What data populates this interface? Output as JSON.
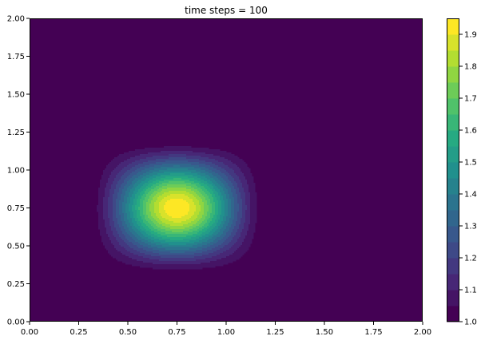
{
  "chart_data": {
    "type": "heatmap",
    "subtype": "filled-contour",
    "title": "time steps = 100",
    "xlabel": "",
    "ylabel": "",
    "xlim": [
      0,
      2
    ],
    "ylim": [
      0,
      2
    ],
    "x_ticks": [
      "0.00",
      "0.25",
      "0.50",
      "0.75",
      "1.00",
      "1.25",
      "1.50",
      "1.75",
      "2.00"
    ],
    "y_ticks": [
      "0.00",
      "0.25",
      "0.50",
      "0.75",
      "1.00",
      "1.25",
      "1.50",
      "1.75",
      "2.00"
    ],
    "field": {
      "background_value": 1.0,
      "peak_value": 1.95,
      "peak_x": 0.75,
      "peak_y": 0.75,
      "support_x": [
        0.28,
        1.22
      ],
      "support_y": [
        0.28,
        1.22
      ],
      "description": "smooth rounded-square hump centred at (0.75, 0.75) on a flat background of 1.0"
    },
    "colorbar": {
      "min": 1.0,
      "max": 1.95,
      "step": 0.05,
      "tick_labels": [
        "1.0",
        "1.1",
        "1.2",
        "1.3",
        "1.4",
        "1.5",
        "1.6",
        "1.7",
        "1.8",
        "1.9"
      ],
      "colormap": "viridis"
    },
    "grid": false,
    "legend": "none"
  }
}
